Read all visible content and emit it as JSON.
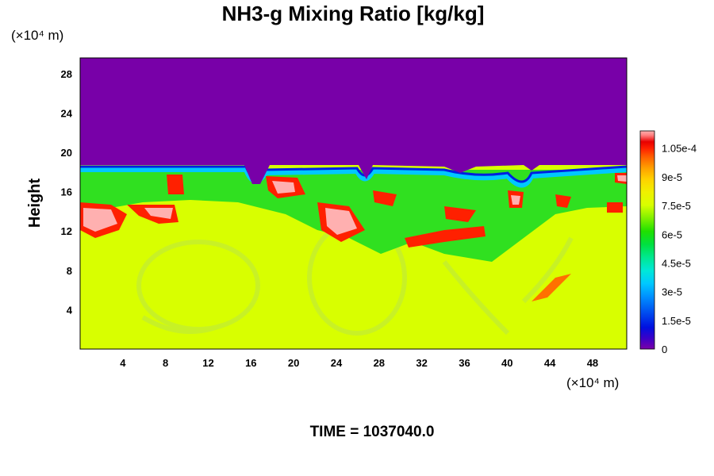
{
  "chart_data": {
    "type": "heatmap",
    "title": "NH3-g Mixing Ratio [kg/kg]",
    "xlabel": "",
    "ylabel": "Height",
    "x_unit": "(×10⁴ m)",
    "y_unit": "(×10⁴ m)",
    "xlim": [
      0,
      51.2
    ],
    "ylim": [
      0,
      29.6
    ],
    "xticks": [
      4,
      8,
      12,
      16,
      20,
      24,
      28,
      32,
      36,
      40,
      44,
      48
    ],
    "yticks": [
      4,
      8,
      12,
      16,
      20,
      24,
      28
    ],
    "colorbar": {
      "ticks": [
        {
          "value": 0,
          "label": "0"
        },
        {
          "value": 1.5e-05,
          "label": "1.5e-5"
        },
        {
          "value": 3e-05,
          "label": "3e-5"
        },
        {
          "value": 4.5e-05,
          "label": "4.5e-5"
        },
        {
          "value": 6e-05,
          "label": "6e-5"
        },
        {
          "value": 7.5e-05,
          "label": "7.5e-5"
        },
        {
          "value": 9e-05,
          "label": "9e-5"
        },
        {
          "value": 0.000105,
          "label": "1.05e-4"
        }
      ],
      "range": [
        0,
        0.000114
      ],
      "colors": [
        "#7b00a8",
        "#3a00c8",
        "#0010e0",
        "#0050f0",
        "#0090ff",
        "#00c8ff",
        "#00e8d8",
        "#00e890",
        "#00e040",
        "#20e000",
        "#60e800",
        "#a0f000",
        "#d8ff00",
        "#f0f000",
        "#ffd000",
        "#ffa000",
        "#ff7000",
        "#ff3000",
        "#e80000",
        "#ff8080",
        "#ffb0b0"
      ]
    },
    "regions": {
      "upper_value": 0,
      "lower_value": 7.3e-05,
      "boundary_height_approx": 18.6
    },
    "footer": "TIME = 1037040.0"
  }
}
